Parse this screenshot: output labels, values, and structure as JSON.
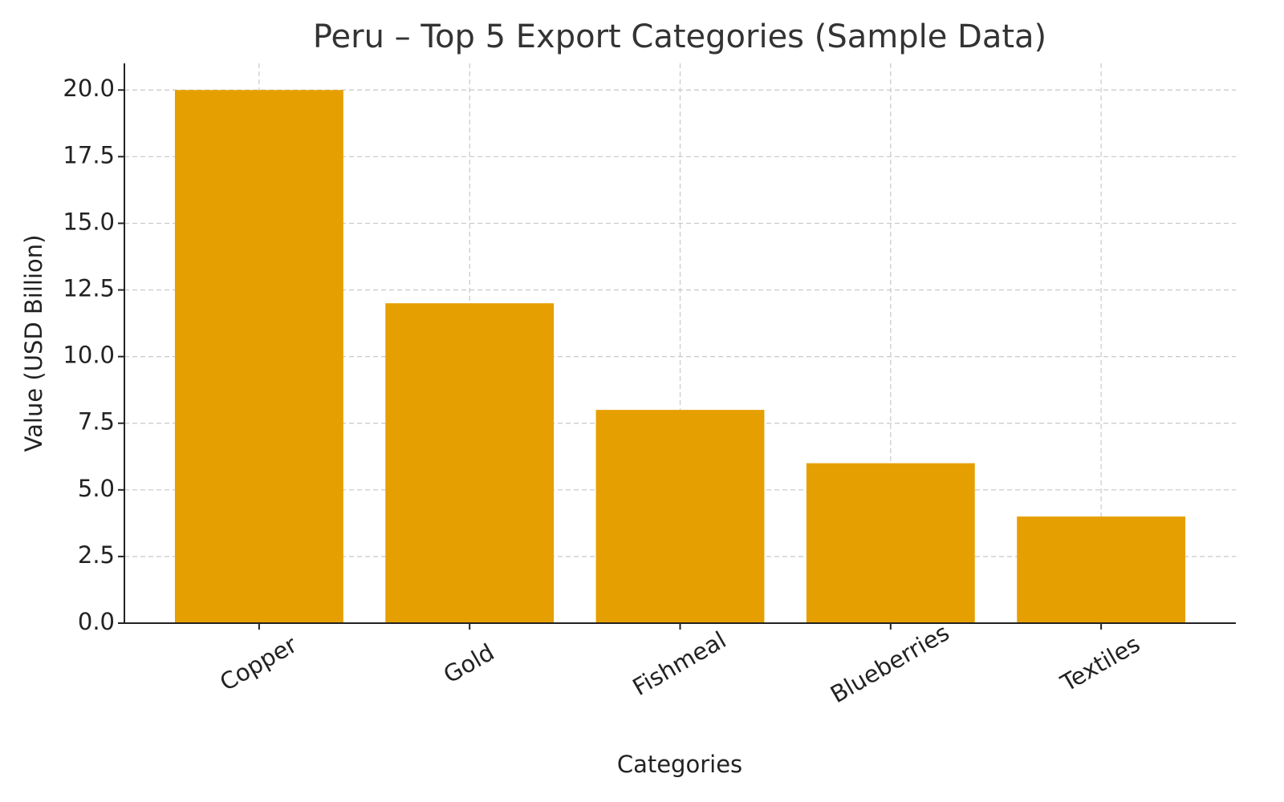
{
  "chart_data": {
    "type": "bar",
    "title": "Peru – Top 5 Export Categories (Sample Data)",
    "x_label": "Categories",
    "y_label": "Value (USD Billion)",
    "categories": [
      "Copper",
      "Gold",
      "Fishmeal",
      "Blueberries",
      "Textiles"
    ],
    "values": [
      20,
      12,
      8,
      6,
      4
    ],
    "color": "#e69f00",
    "ylim": [
      0,
      21
    ],
    "yticks": [
      {
        "value": 0,
        "label": "0.0"
      },
      {
        "value": 2.5,
        "label": "2.5"
      },
      {
        "value": 5,
        "label": "5.0"
      },
      {
        "value": 7.5,
        "label": "7.5"
      },
      {
        "value": 10,
        "label": "10.0"
      },
      {
        "value": 12.5,
        "label": "12.5"
      },
      {
        "value": 15,
        "label": "15.0"
      },
      {
        "value": 17.5,
        "label": "17.5"
      },
      {
        "value": 20,
        "label": "20.0"
      }
    ],
    "grid": true
  }
}
